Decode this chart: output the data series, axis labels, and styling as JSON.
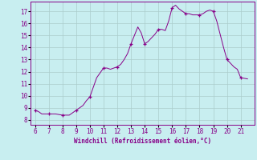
{
  "x": [
    6,
    6.25,
    6.5,
    7,
    7.25,
    7.5,
    8,
    8.25,
    8.5,
    9,
    9.25,
    9.5,
    9.75,
    10,
    10.25,
    10.5,
    10.75,
    11,
    11.25,
    11.5,
    11.75,
    12,
    12.25,
    12.5,
    12.75,
    13,
    13.25,
    13.5,
    13.75,
    14,
    14.25,
    14.5,
    14.75,
    15,
    15.25,
    15.5,
    15.75,
    16,
    16.25,
    16.5,
    16.75,
    17,
    17.25,
    17.5,
    17.75,
    18,
    18.25,
    18.5,
    18.75,
    19,
    19.25,
    19.5,
    19.75,
    20,
    20.25,
    20.5,
    20.75,
    21,
    21.25,
    21.5
  ],
  "y": [
    8.8,
    8.7,
    8.5,
    8.5,
    8.5,
    8.5,
    8.4,
    8.4,
    8.4,
    8.8,
    9.0,
    9.2,
    9.6,
    9.9,
    10.7,
    11.5,
    11.9,
    12.3,
    12.3,
    12.2,
    12.3,
    12.4,
    12.6,
    13.0,
    13.5,
    14.3,
    15.0,
    15.7,
    15.2,
    14.3,
    14.5,
    14.8,
    15.1,
    15.5,
    15.5,
    15.4,
    16.2,
    17.3,
    17.5,
    17.2,
    17.0,
    16.8,
    16.8,
    16.7,
    16.7,
    16.7,
    16.8,
    17.0,
    17.1,
    17.0,
    16.2,
    15.1,
    14.0,
    13.0,
    12.7,
    12.4,
    12.2,
    11.5,
    11.45,
    11.4
  ],
  "marker_x": [
    6,
    7,
    8,
    9,
    10,
    11,
    12,
    13,
    14,
    15,
    16,
    17,
    18,
    19,
    20,
    21
  ],
  "marker_y": [
    8.8,
    8.5,
    8.4,
    8.8,
    9.9,
    12.3,
    12.4,
    14.3,
    14.3,
    15.5,
    17.3,
    16.8,
    16.7,
    17.0,
    13.0,
    11.5
  ],
  "line_color": "#880088",
  "marker_color": "#880088",
  "bg_color": "#c8eef0",
  "grid_color": "#aacccc",
  "xlabel": "Windchill (Refroidissement éolien,°C)",
  "xlim": [
    5.7,
    22.0
  ],
  "ylim": [
    7.6,
    17.8
  ],
  "xticks": [
    6,
    7,
    8,
    9,
    10,
    11,
    12,
    13,
    14,
    15,
    16,
    17,
    18,
    19,
    20,
    21
  ],
  "yticks": [
    8,
    9,
    10,
    11,
    12,
    13,
    14,
    15,
    16,
    17
  ]
}
